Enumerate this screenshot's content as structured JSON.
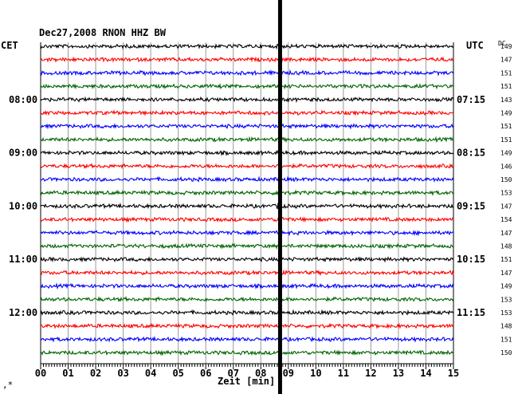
{
  "chart_data": {
    "type": "line",
    "title": "Dec27,2008   RNON HHZ BW",
    "left_axis_label": "CET",
    "right_axis_label": "UTC",
    "dc_label": "DC",
    "xlabel": "Zeit [min]",
    "xlim": [
      0,
      15
    ],
    "x_ticks": [
      "00",
      "01",
      "02",
      "03",
      "04",
      "05",
      "06",
      "07",
      "08",
      "09",
      "10",
      "11",
      "12",
      "13",
      "14",
      "15"
    ],
    "trace_colors": [
      "#000000",
      "#ff0000",
      "#0000ff",
      "#006400"
    ],
    "traces_count": 24,
    "event_minute": 8.7,
    "hour_marks": [
      {
        "trace": 4,
        "cet": "08:00",
        "utc": "07:15"
      },
      {
        "trace": 8,
        "cet": "09:00",
        "utc": "08:15"
      },
      {
        "trace": 12,
        "cet": "10:00",
        "utc": "09:15"
      },
      {
        "trace": 16,
        "cet": "11:00",
        "utc": "10:15"
      },
      {
        "trace": 20,
        "cet": "12:00",
        "utc": "11:15"
      }
    ],
    "dc_values": [
      "149",
      "147",
      "151",
      "151",
      "143",
      "149",
      "151",
      "151",
      "149",
      "146",
      "150",
      "153",
      "147",
      "154",
      "147",
      "148",
      "151",
      "147",
      "149",
      "153",
      "153",
      "148",
      "151",
      "150"
    ]
  }
}
